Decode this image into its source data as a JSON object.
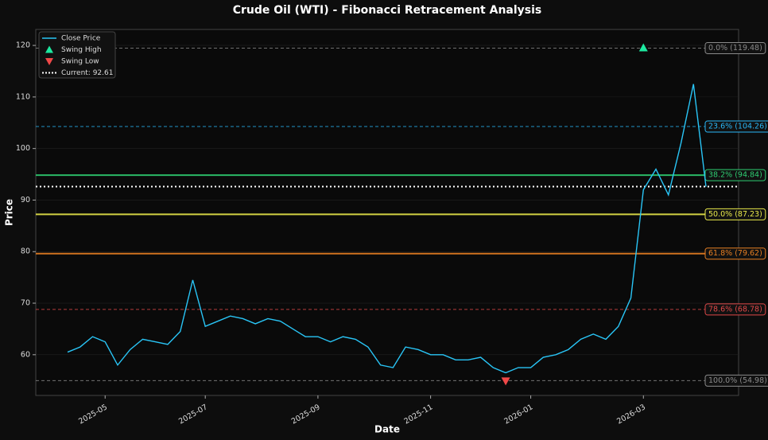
{
  "chart_data": {
    "type": "line",
    "title": "Crude Oil (WTI) - Fibonacci Retracement Analysis",
    "xlabel": "Date",
    "ylabel": "Price",
    "categories": [
      null,
      null,
      null,
      "2025-05",
      null,
      null,
      null,
      null,
      null,
      null,
      null,
      "2025-07",
      null,
      null,
      null,
      null,
      null,
      null,
      null,
      null,
      "2025-09",
      null,
      null,
      null,
      null,
      null,
      null,
      null,
      null,
      "2025-11",
      null,
      null,
      null,
      null,
      null,
      null,
      null,
      "2026-01",
      null,
      null,
      null,
      null,
      null,
      null,
      null,
      null,
      "2026-03",
      null,
      null,
      null,
      null,
      null
    ],
    "series": [
      {
        "name": "Close Price",
        "color": "#29c5f6",
        "values": [
          60.5,
          61.5,
          63.5,
          62.5,
          58,
          61,
          63,
          62.5,
          62,
          64.5,
          74.5,
          65.5,
          66.5,
          67.5,
          67,
          66,
          67,
          66.5,
          65,
          63.5,
          63.5,
          62.5,
          63.5,
          63,
          61.5,
          58,
          57.5,
          61.5,
          61,
          60,
          60,
          59,
          59,
          59.5,
          57.5,
          56.5,
          57.5,
          57.5,
          59.5,
          60,
          61,
          63,
          64,
          63,
          65.5,
          71,
          92,
          96,
          91,
          101,
          112.5,
          92.61
        ]
      },
      {
        "name": "Swing High",
        "color": "#1de9a0",
        "marker": "triangle-up",
        "values": [
          null,
          null,
          null,
          null,
          null,
          null,
          null,
          null,
          null,
          null,
          null,
          null,
          null,
          null,
          null,
          null,
          null,
          null,
          null,
          null,
          null,
          null,
          null,
          null,
          null,
          null,
          null,
          null,
          null,
          null,
          null,
          null,
          null,
          null,
          null,
          null,
          null,
          null,
          null,
          null,
          null,
          null,
          null,
          null,
          null,
          null,
          119.48,
          null,
          null,
          null,
          null,
          null
        ]
      },
      {
        "name": "Swing Low",
        "color": "#f04848",
        "marker": "triangle-down",
        "values": [
          null,
          null,
          null,
          null,
          null,
          null,
          null,
          null,
          null,
          null,
          null,
          null,
          null,
          null,
          null,
          null,
          null,
          null,
          null,
          null,
          null,
          null,
          null,
          null,
          null,
          null,
          null,
          null,
          null,
          null,
          null,
          null,
          null,
          null,
          null,
          54.98,
          null,
          null,
          null,
          null,
          null,
          null,
          null,
          null,
          null,
          null,
          null,
          null,
          null,
          null,
          null,
          null
        ]
      }
    ],
    "current": {
      "name": "Current: 92.61",
      "value": 92.61,
      "color": "#ffffff"
    },
    "levels": [
      {
        "label": "0.0% (119.48)",
        "value": 119.48,
        "color": "#8a8a8a",
        "dashed": true
      },
      {
        "label": "23.6% (104.26)",
        "value": 104.26,
        "color": "#29b6f6",
        "dashed": true
      },
      {
        "label": "38.2% (94.84)",
        "value": 94.84,
        "color": "#2ecc71",
        "dashed": false
      },
      {
        "label": "50.0% (87.23)",
        "value": 87.23,
        "color": "#e8e84a",
        "dashed": false
      },
      {
        "label": "61.8% (79.62)",
        "value": 79.62,
        "color": "#e67e22",
        "dashed": false
      },
      {
        "label": "78.6% (68.78)",
        "value": 68.78,
        "color": "#e04848",
        "dashed": true
      },
      {
        "label": "100.0% (54.98)",
        "value": 54.98,
        "color": "#8a8a8a",
        "dashed": true
      }
    ],
    "ylim": [
      52.1,
      123.1
    ],
    "yticks": [
      60,
      70,
      80,
      90,
      100,
      110,
      120
    ],
    "grid": true
  }
}
